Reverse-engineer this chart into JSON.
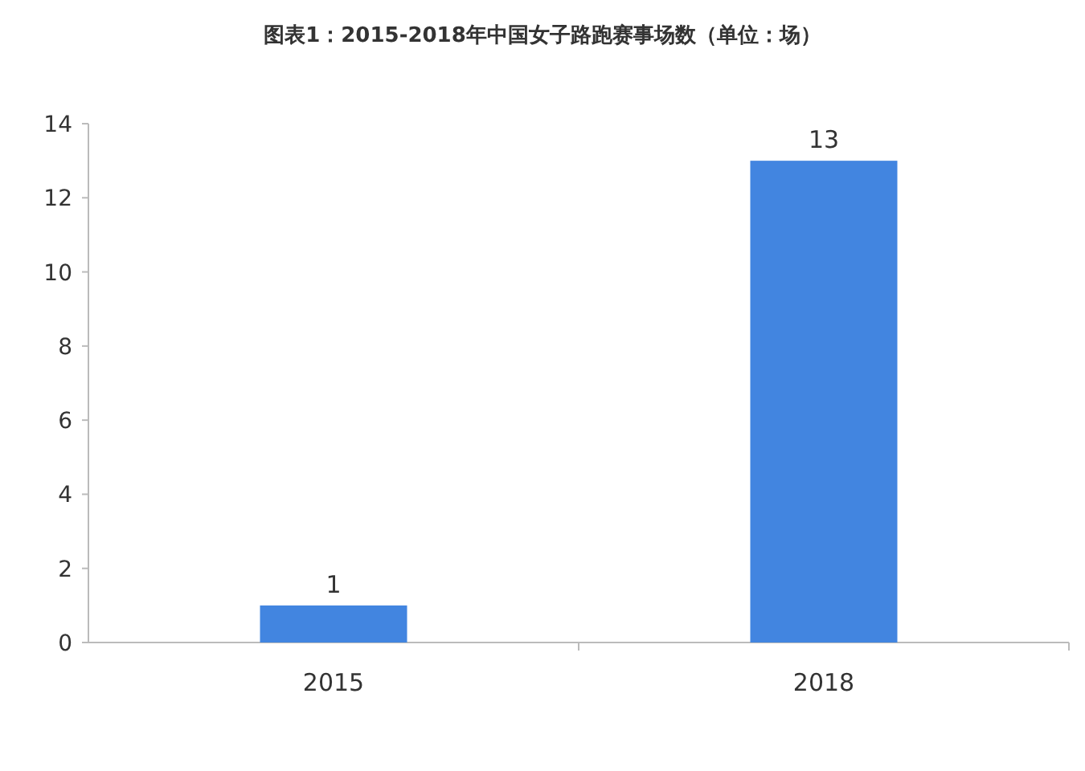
{
  "chart_data": {
    "type": "bar",
    "title": "图表1：2015-2018年中国女子路跑赛事场数（单位：场）",
    "categories": [
      "2015",
      "2018"
    ],
    "values": [
      1,
      13
    ],
    "color": "#4285e0",
    "ylim": [
      0,
      14
    ],
    "yticks": [
      0,
      2,
      4,
      6,
      8,
      10,
      12,
      14
    ],
    "grid": false,
    "data_labels": true
  }
}
